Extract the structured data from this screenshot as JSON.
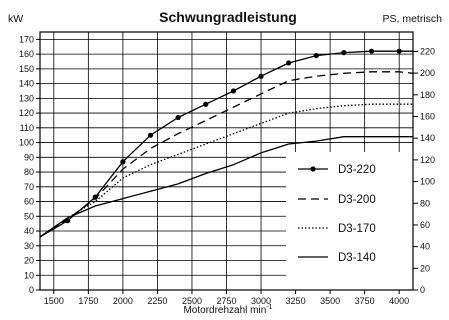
{
  "chart_data": {
    "type": "line",
    "title": "Schwungradleistung",
    "left_unit": "kW",
    "right_unit": "PS, metrisch",
    "xlabel_base": "Motordrehzahl min",
    "xlabel_sup": "-1",
    "x_ticks": [
      1500,
      1750,
      2000,
      2250,
      2500,
      2750,
      3000,
      3250,
      3500,
      3750,
      4000
    ],
    "x_tick_labels": [
      "1500",
      "1750",
      "2000",
      "2250",
      "2500",
      "2750",
      "3000",
      "3250",
      "3500",
      "3750",
      "4000"
    ],
    "xlim": [
      1400,
      4100
    ],
    "y_ticks": [
      0,
      10,
      20,
      30,
      40,
      50,
      60,
      70,
      80,
      90,
      100,
      110,
      120,
      130,
      140,
      150,
      160,
      170
    ],
    "y_tick_labels": [
      "0",
      "10",
      "20",
      "30",
      "40",
      "50",
      "60",
      "70",
      "80",
      "90",
      "100",
      "110",
      "120",
      "130",
      "140",
      "150",
      "160",
      "170"
    ],
    "ylim": [
      0,
      175
    ],
    "y2_ticks": [
      0,
      20,
      40,
      60,
      80,
      100,
      120,
      140,
      160,
      180,
      200,
      220
    ],
    "y2_tick_labels": [
      "0",
      "20",
      "40",
      "60",
      "80",
      "100",
      "120",
      "140",
      "160",
      "180",
      "200",
      "220"
    ],
    "y2_per_y": 1.3596,
    "grid": true,
    "legend_placement": "bottom-right",
    "series": [
      {
        "name": "D3-220",
        "style": "solid-markers",
        "x": [
          1400,
          1600,
          1800,
          2000,
          2200,
          2400,
          2600,
          2800,
          3000,
          3200,
          3400,
          3600,
          3800,
          4000,
          4100
        ],
        "y": [
          36,
          47,
          63,
          87,
          105,
          117,
          126,
          135,
          145,
          154,
          159,
          161,
          162,
          162,
          162
        ]
      },
      {
        "name": "D3-200",
        "style": "dashed",
        "x": [
          1400,
          1600,
          1800,
          2000,
          2200,
          2400,
          2600,
          2800,
          3000,
          3200,
          3400,
          3600,
          3800,
          4000,
          4100
        ],
        "y": [
          36,
          48,
          62,
          82,
          96,
          106,
          115,
          124,
          133,
          142,
          145,
          147,
          148,
          148,
          147
        ]
      },
      {
        "name": "D3-170",
        "style": "dotted",
        "x": [
          1400,
          1600,
          1800,
          2000,
          2200,
          2400,
          2600,
          2800,
          3000,
          3200,
          3400,
          3600,
          3800,
          4000,
          4100
        ],
        "y": [
          36,
          49,
          60,
          76,
          85,
          92,
          99,
          106,
          113,
          120,
          123,
          125,
          126,
          126,
          126
        ]
      },
      {
        "name": "D3-140",
        "style": "solid",
        "x": [
          1400,
          1600,
          1800,
          2000,
          2200,
          2400,
          2600,
          2800,
          3000,
          3200,
          3400,
          3600,
          3800,
          4000,
          4100
        ],
        "y": [
          36,
          49,
          57,
          62,
          67,
          72,
          79,
          85,
          93,
          99,
          101,
          104,
          104,
          104,
          104
        ]
      }
    ]
  }
}
